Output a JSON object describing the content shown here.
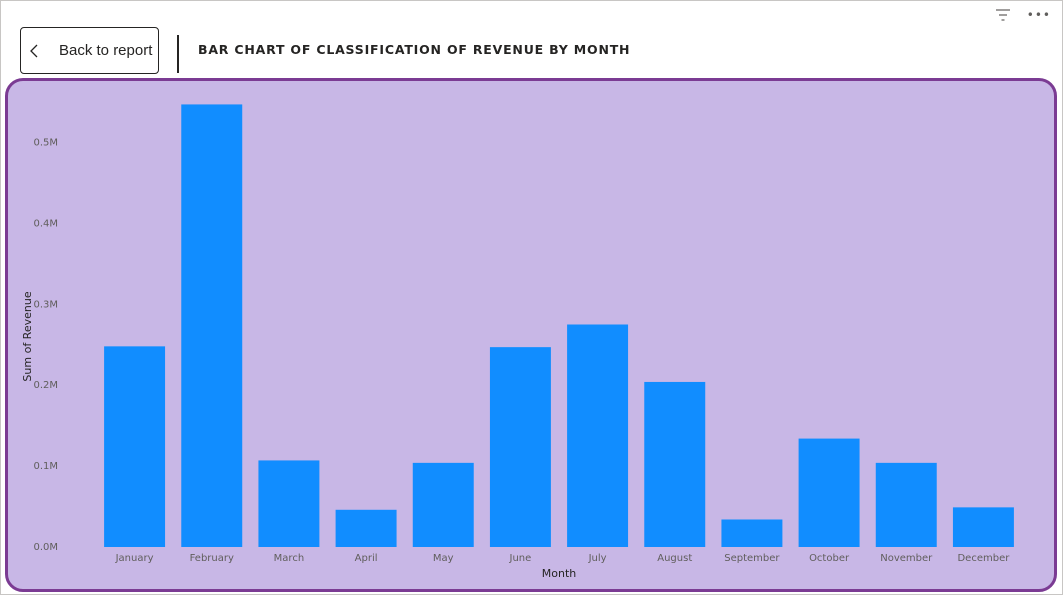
{
  "header": {
    "back_label": "Back to report",
    "title": "BAR CHART OF CLASSIFICATION OF REVENUE BY MONTH",
    "icons": [
      "chevron-left-icon",
      "filter-icon",
      "more-options-icon"
    ],
    "more_glyph": "•••"
  },
  "colors": {
    "bar": "#118dff",
    "panel_background": "#c8b7e6",
    "panel_border": "#7b3b93"
  },
  "chart_data": {
    "type": "bar",
    "categories": [
      "January",
      "February",
      "March",
      "April",
      "May",
      "June",
      "July",
      "August",
      "September",
      "October",
      "November",
      "December"
    ],
    "values": [
      248000,
      547000,
      107000,
      46000,
      104000,
      247000,
      275000,
      204000,
      34000,
      134000,
      104000,
      49000
    ],
    "title": "BAR CHART OF CLASSIFICATION OF REVENUE BY MONTH",
    "xlabel": "Month",
    "ylabel": "Sum of Revenue",
    "ylim": [
      0,
      550000
    ],
    "yticks": [
      {
        "value": 0,
        "label": "0.0M"
      },
      {
        "value": 100000,
        "label": "0.1M"
      },
      {
        "value": 200000,
        "label": "0.2M"
      },
      {
        "value": 300000,
        "label": "0.3M"
      },
      {
        "value": 400000,
        "label": "0.4M"
      },
      {
        "value": 500000,
        "label": "0.5M"
      }
    ],
    "grid": false,
    "legend": "none"
  }
}
